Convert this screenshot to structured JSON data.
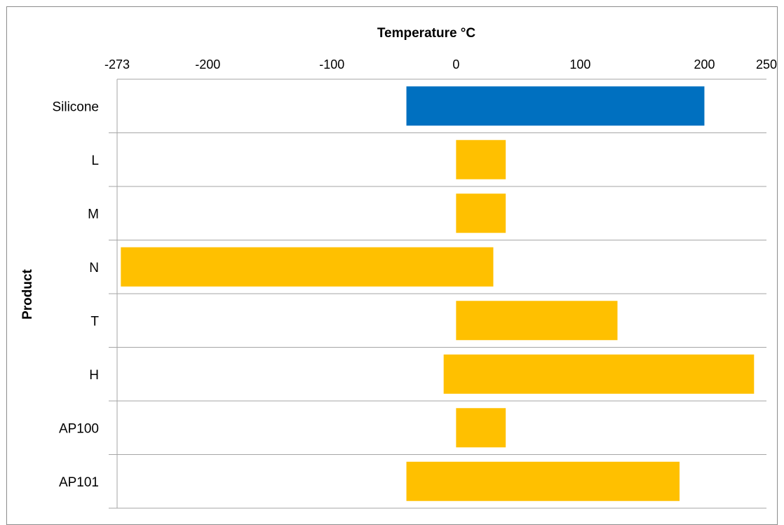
{
  "chart_data": {
    "type": "bar",
    "orientation": "horizontal",
    "bar_style": "floating-range",
    "xlabel": "Temperature °C",
    "ylabel": "Product",
    "xlim": [
      -273,
      250
    ],
    "xticks": [
      -273,
      -200,
      -100,
      0,
      100,
      200,
      250
    ],
    "x_axis_position": "top",
    "grid": "horizontal separators between categories",
    "categories": [
      "Silicone",
      "L",
      "M",
      "N",
      "T",
      "H",
      "AP100",
      "AP101"
    ],
    "series": [
      {
        "ranges": [
          [
            -40,
            200
          ],
          [
            0,
            40
          ],
          [
            0,
            40
          ],
          [
            -270,
            30
          ],
          [
            0,
            130
          ],
          [
            -10,
            240
          ],
          [
            0,
            40
          ],
          [
            -40,
            180
          ]
        ]
      }
    ],
    "colors": [
      "#0070C0",
      "#FFC000",
      "#FFC000",
      "#FFC000",
      "#FFC000",
      "#FFC000",
      "#FFC000",
      "#FFC000"
    ],
    "gridline_color": "#a6a6a6"
  }
}
